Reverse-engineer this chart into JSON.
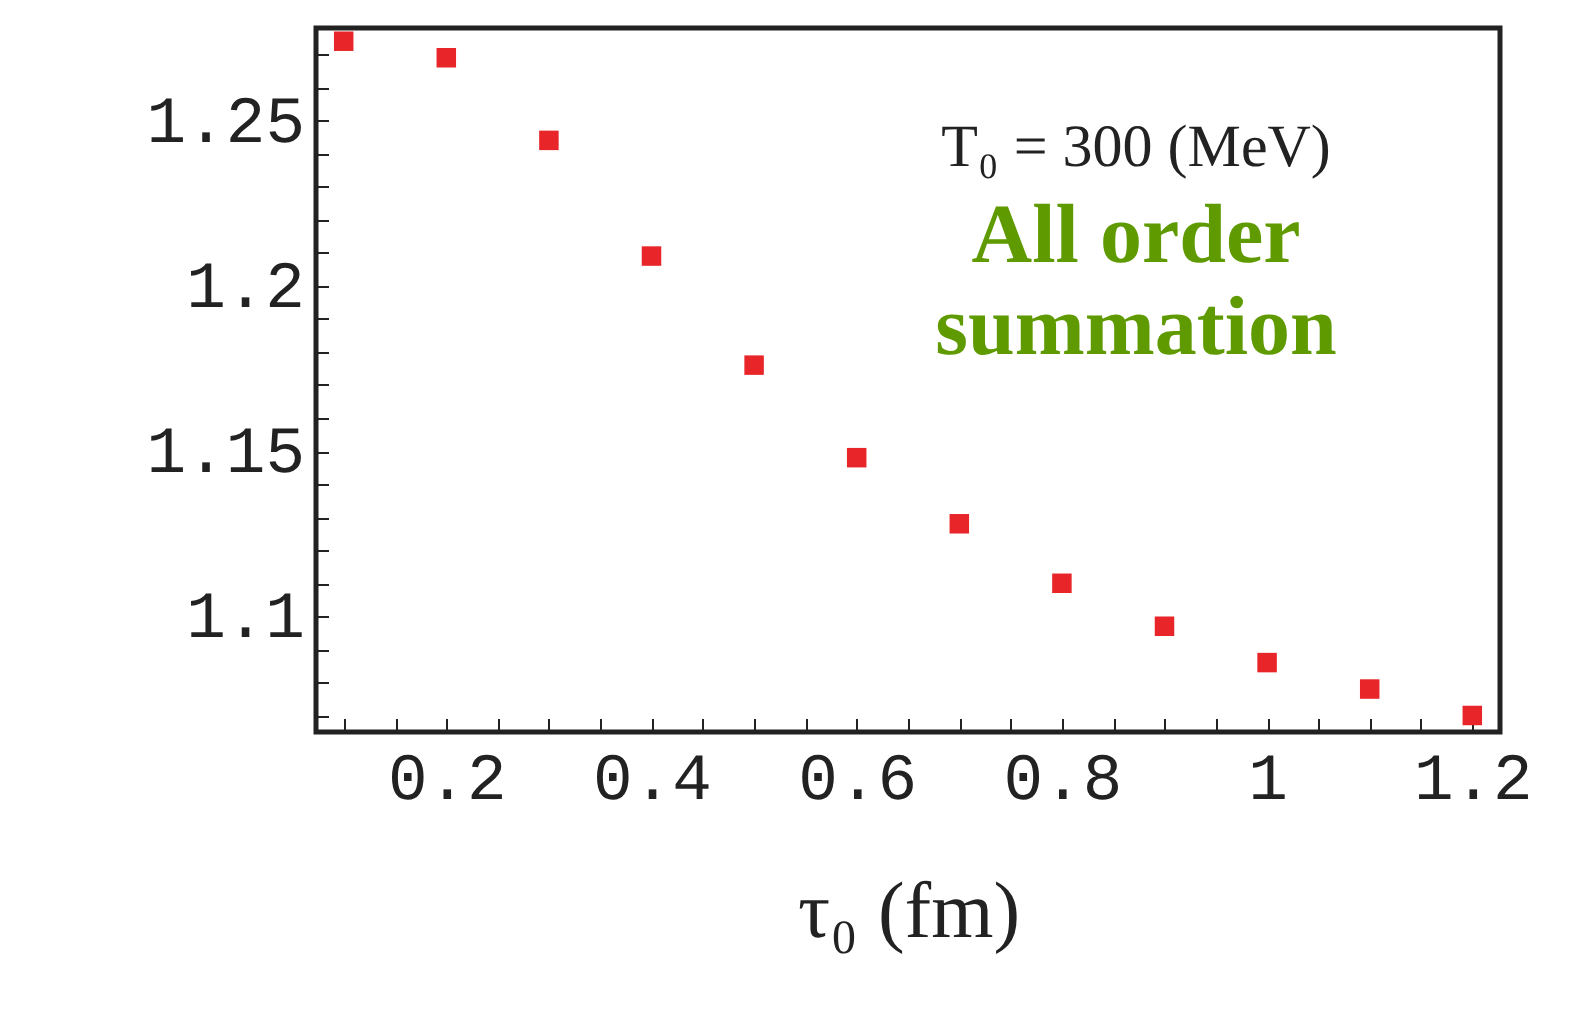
{
  "chart_data": {
    "type": "scatter",
    "xlabel": "τ₀ (fm)",
    "x": [
      0.1,
      0.2,
      0.3,
      0.4,
      0.5,
      0.6,
      0.7,
      0.8,
      0.9,
      1.0,
      1.1,
      1.2
    ],
    "series": [
      {
        "color": "#e8262a",
        "values": [
          1.274,
          1.269,
          1.244,
          1.209,
          1.176,
          1.148,
          1.128,
          1.11,
          1.097,
          1.086,
          1.078,
          1.07
        ]
      }
    ],
    "xlim": [
      0.073,
      1.227
    ],
    "xticks": [
      {
        "value": 0.1,
        "label": null
      },
      {
        "value": 0.15,
        "label": null
      },
      0.2,
      {
        "value": 0.25,
        "label": null
      },
      {
        "value": 0.3,
        "label": null
      },
      {
        "value": 0.35,
        "label": null
      },
      0.4,
      {
        "value": 0.45,
        "label": null
      },
      {
        "value": 0.5,
        "label": null
      },
      {
        "value": 0.55,
        "label": null
      },
      0.6,
      {
        "value": 0.65,
        "label": null
      },
      {
        "value": 0.7,
        "label": null
      },
      {
        "value": 0.75,
        "label": null
      },
      0.8,
      {
        "value": 0.85,
        "label": null
      },
      {
        "value": 0.9,
        "label": null
      },
      {
        "value": 0.95,
        "label": null
      },
      1,
      {
        "value": 1.05,
        "label": null
      },
      {
        "value": 1.1,
        "label": null
      },
      {
        "value": 1.15,
        "label": null
      },
      1.2
    ],
    "ylim": [
      1.065,
      1.278
    ],
    "yticks": [
      {
        "value": 1.07,
        "label": null
      },
      {
        "value": 1.08,
        "label": null
      },
      {
        "value": 1.09,
        "label": null
      },
      1.1,
      {
        "value": 1.11,
        "label": null
      },
      {
        "value": 1.12,
        "label": null
      },
      {
        "value": 1.13,
        "label": null
      },
      {
        "value": 1.14,
        "label": null
      },
      1.15,
      {
        "value": 1.16,
        "label": null
      },
      {
        "value": 1.17,
        "label": null
      },
      {
        "value": 1.18,
        "label": null
      },
      {
        "value": 1.19,
        "label": null
      },
      1.2,
      {
        "value": 1.21,
        "label": null
      },
      {
        "value": 1.22,
        "label": null
      },
      {
        "value": 1.23,
        "label": null
      },
      {
        "value": 1.24,
        "label": null
      },
      1.25,
      {
        "value": 1.26,
        "label": null
      },
      {
        "value": 1.27,
        "label": null
      }
    ],
    "annotations": [
      "T₀ = 300 (MeV)",
      "All order summation"
    ],
    "marker": "square",
    "grid": false
  }
}
